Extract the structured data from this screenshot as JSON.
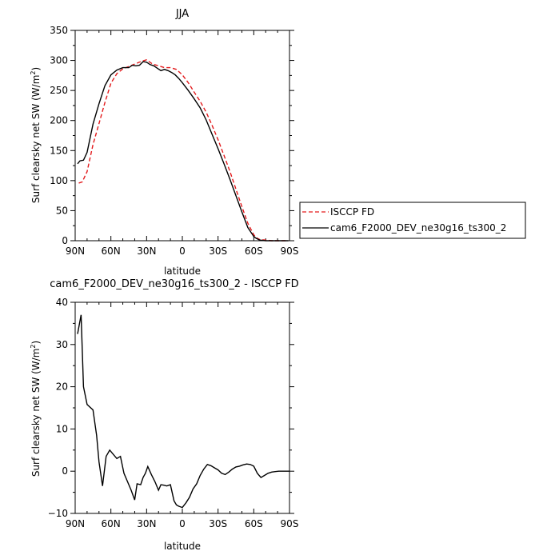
{
  "chart_data": [
    {
      "type": "line",
      "title": "JJA",
      "xlabel": "latitude",
      "ylabel": "Surf clearsky net SW (W/m²)",
      "ylabel_parts": {
        "main": "Surf clearsky net SW (W/m",
        "sup": "2",
        "close": ")"
      },
      "x_ticks": [
        90,
        60,
        30,
        0,
        -30,
        -60,
        -90
      ],
      "x_tick_labels": [
        "90N",
        "60N",
        "30N",
        "0",
        "30S",
        "60S",
        "90S"
      ],
      "xlim": [
        90,
        -90
      ],
      "ylim": [
        0,
        350
      ],
      "y_ticks": [
        0,
        50,
        100,
        150,
        200,
        250,
        300,
        350
      ],
      "y_tick_labels": [
        "0",
        "50",
        "100",
        "150",
        "200",
        "250",
        "300",
        "350"
      ],
      "legend_position": "outside-right",
      "series": [
        {
          "name": "ISCCP FD",
          "color": "#e31a1c",
          "dash": "dashed",
          "x": [
            87,
            84,
            80,
            75,
            70,
            65,
            60,
            55,
            50,
            45,
            40,
            35,
            30,
            25,
            20,
            15,
            10,
            5,
            0,
            -5,
            -10,
            -15,
            -20,
            -25,
            -30,
            -35,
            -40,
            -45,
            -50,
            -55,
            -60,
            -62,
            -65,
            -70,
            -75,
            -80,
            -85,
            -89
          ],
          "y": [
            96,
            98,
            115,
            160,
            195,
            230,
            262,
            278,
            286,
            290,
            294,
            298,
            301,
            294,
            291,
            288,
            288,
            285,
            276,
            263,
            247,
            232,
            214,
            192,
            168,
            142,
            115,
            86,
            57,
            29,
            10,
            5,
            2,
            1,
            0,
            0,
            0,
            0
          ]
        },
        {
          "name": "cam6_F2000_DEV_ne30g16_ts300_2",
          "color": "#000000",
          "dash": "solid",
          "x": [
            88,
            86,
            83,
            80,
            75,
            70,
            65,
            60,
            55,
            50,
            45,
            42,
            39,
            36,
            33,
            30,
            27,
            24,
            21,
            18,
            15,
            12,
            9,
            6,
            3,
            0,
            -5,
            -10,
            -15,
            -20,
            -25,
            -30,
            -35,
            -40,
            -45,
            -50,
            -55,
            -60,
            -62,
            -65,
            -70,
            -75,
            -80,
            -85,
            -89
          ],
          "y": [
            128,
            133,
            134,
            147,
            194,
            228,
            258,
            276,
            284,
            288,
            288,
            292,
            291,
            292,
            298,
            297,
            293,
            291,
            287,
            283,
            285,
            283,
            280,
            276,
            270,
            263,
            250,
            236,
            221,
            201,
            177,
            153,
            128,
            102,
            75,
            48,
            22,
            7,
            4,
            1,
            0,
            0,
            0,
            0,
            0
          ]
        }
      ]
    },
    {
      "type": "line",
      "title": "cam6_F2000_DEV_ne30g16_ts300_2 - ISCCP FD",
      "xlabel": "latitude",
      "ylabel": "Surf clearsky net SW (W/m²)",
      "ylabel_parts": {
        "main": "Surf clearsky net SW (W/m",
        "sup": "2",
        "close": ")"
      },
      "x_ticks": [
        90,
        60,
        30,
        0,
        -30,
        -60,
        -90
      ],
      "x_tick_labels": [
        "90N",
        "60N",
        "30N",
        "0",
        "30S",
        "60S",
        "90S"
      ],
      "xlim": [
        90,
        -90
      ],
      "ylim": [
        -10,
        40
      ],
      "y_ticks": [
        -10,
        0,
        10,
        20,
        30,
        40
      ],
      "y_tick_labels": [
        "−10",
        "0",
        "10",
        "20",
        "30",
        "40"
      ],
      "series": [
        {
          "color": "#000000",
          "dash": "solid",
          "x": [
            88,
            85,
            83,
            80,
            75,
            72,
            70,
            67,
            64,
            61,
            58,
            55,
            52,
            49,
            46,
            43,
            40,
            38,
            35,
            33,
            31,
            29,
            26,
            23,
            20,
            18,
            16,
            13,
            10,
            7,
            5,
            3,
            0,
            -3,
            -6,
            -9,
            -12,
            -15,
            -18,
            -21,
            -24,
            -27,
            -30,
            -33,
            -36,
            -39,
            -42,
            -45,
            -48,
            -51,
            -54,
            -57,
            -60,
            -63,
            -66,
            -69,
            -72,
            -75,
            -78,
            -81,
            -84,
            -87,
            -90
          ],
          "y": [
            32.5,
            37,
            20,
            15.8,
            14.5,
            8.5,
            2.2,
            -3.5,
            3.5,
            5,
            4,
            3,
            3.5,
            -0.5,
            -2.5,
            -4.5,
            -6.8,
            -3,
            -3.2,
            -1.5,
            -0.5,
            1.1,
            -0.8,
            -2.5,
            -4.5,
            -3.2,
            -3.3,
            -3.5,
            -3.2,
            -7,
            -8,
            -8.3,
            -8.6,
            -7.5,
            -6.2,
            -4.2,
            -3,
            -1,
            0.5,
            1.6,
            1.3,
            0.8,
            0.3,
            -0.5,
            -0.8,
            -0.2,
            0.5,
            1,
            1.2,
            1.5,
            1.7,
            1.6,
            1.2,
            -0.5,
            -1.5,
            -1,
            -0.5,
            -0.2,
            -0.1,
            0,
            0,
            0,
            0
          ]
        }
      ]
    }
  ]
}
